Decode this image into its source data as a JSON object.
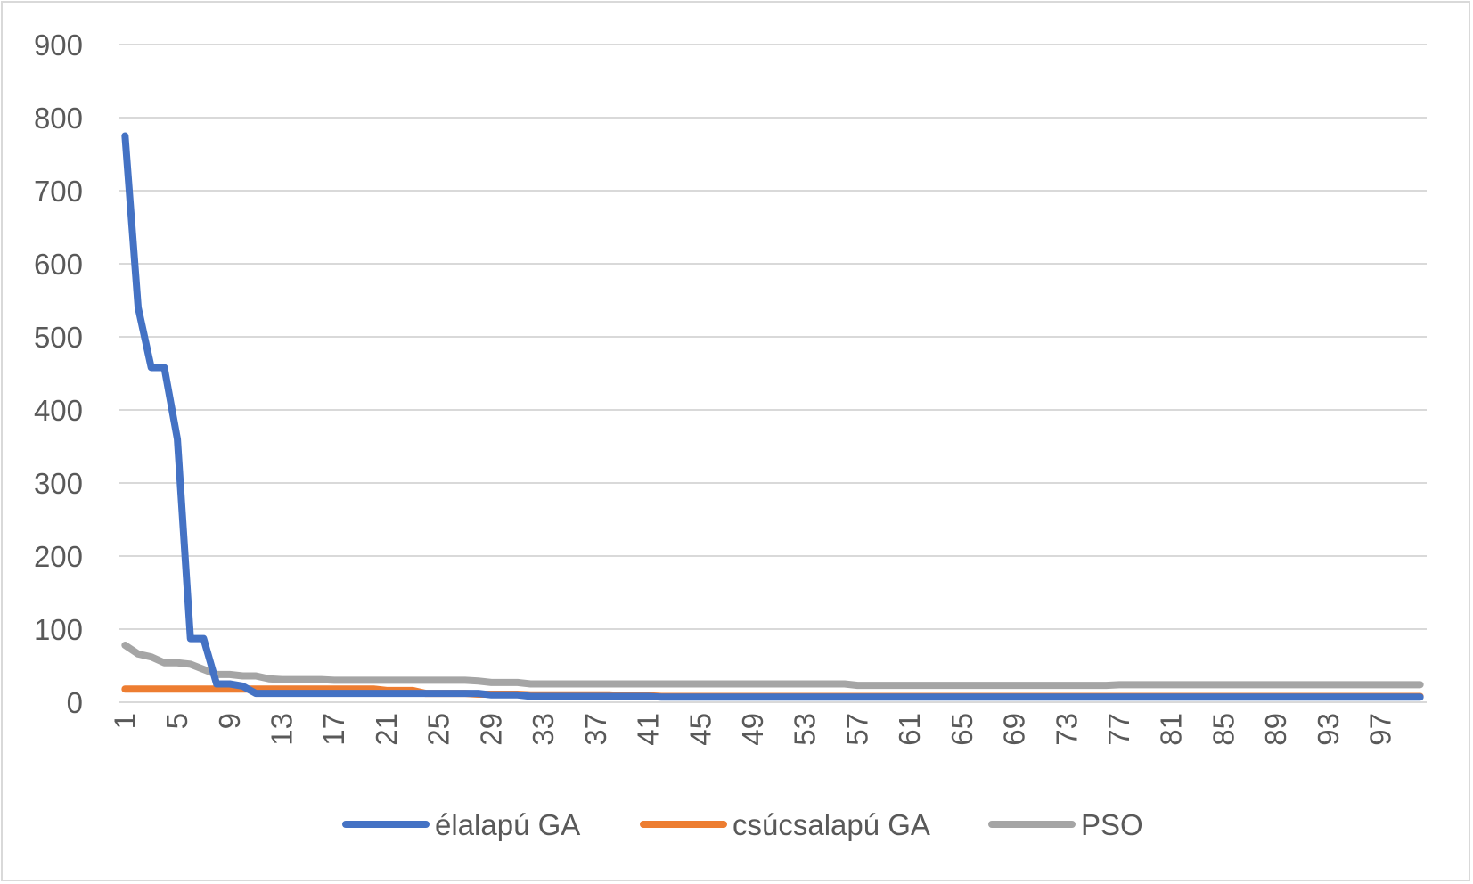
{
  "chart_data": {
    "type": "line",
    "title": "",
    "xlabel": "",
    "ylabel": "",
    "ylim": [
      0,
      900
    ],
    "yticks": [
      0,
      100,
      200,
      300,
      400,
      500,
      600,
      700,
      800,
      900
    ],
    "x": [
      1,
      2,
      3,
      4,
      5,
      6,
      7,
      8,
      9,
      10,
      11,
      12,
      13,
      14,
      15,
      16,
      17,
      18,
      19,
      20,
      21,
      22,
      23,
      24,
      25,
      26,
      27,
      28,
      29,
      30,
      31,
      32,
      33,
      34,
      35,
      36,
      37,
      38,
      39,
      40,
      41,
      42,
      43,
      44,
      45,
      46,
      47,
      48,
      49,
      50,
      51,
      52,
      53,
      54,
      55,
      56,
      57,
      58,
      59,
      60,
      61,
      62,
      63,
      64,
      65,
      66,
      67,
      68,
      69,
      70,
      71,
      72,
      73,
      74,
      75,
      76,
      77,
      78,
      79,
      80,
      81,
      82,
      83,
      84,
      85,
      86,
      87,
      88,
      89,
      90,
      91,
      92,
      93,
      94,
      95,
      96,
      97,
      98,
      99,
      100
    ],
    "xtick_labels": [
      "1",
      "5",
      "9",
      "13",
      "17",
      "21",
      "25",
      "29",
      "33",
      "37",
      "41",
      "45",
      "49",
      "53",
      "57",
      "61",
      "65",
      "69",
      "73",
      "77",
      "81",
      "85",
      "89",
      "93",
      "97"
    ],
    "grid": true,
    "legend_position": "bottom",
    "series": [
      {
        "name": "élalapú GA",
        "color": "#4472c4",
        "values": [
          775,
          540,
          458,
          458,
          360,
          87,
          87,
          25,
          25,
          22,
          12,
          12,
          12,
          12,
          12,
          12,
          12,
          12,
          12,
          12,
          12,
          12,
          12,
          12,
          12,
          12,
          12,
          12,
          10,
          10,
          10,
          8,
          8,
          8,
          8,
          8,
          8,
          8,
          8,
          8,
          8,
          7,
          7,
          7,
          7,
          7,
          7,
          7,
          7,
          7,
          7,
          7,
          7,
          7,
          7,
          7,
          7,
          7,
          7,
          7,
          7,
          7,
          7,
          7,
          7,
          7,
          7,
          7,
          7,
          7,
          7,
          7,
          7,
          7,
          7,
          7,
          7,
          7,
          7,
          7,
          7,
          7,
          7,
          7,
          7,
          7,
          7,
          7,
          7,
          7,
          7,
          7,
          7,
          7,
          7,
          7,
          7,
          7,
          7,
          7
        ]
      },
      {
        "name": "csúcsalapú GA",
        "color": "#ed7d31",
        "values": [
          18,
          18,
          18,
          18,
          18,
          18,
          18,
          18,
          18,
          18,
          18,
          18,
          18,
          18,
          18,
          18,
          18,
          18,
          18,
          18,
          16,
          16,
          16,
          12,
          12,
          12,
          12,
          11,
          11,
          11,
          11,
          10,
          10,
          10,
          10,
          10,
          10,
          10,
          9,
          9,
          9,
          8,
          8,
          8,
          8,
          8,
          8,
          8,
          8,
          8,
          8,
          8,
          8,
          8,
          8,
          8,
          8,
          8,
          8,
          8,
          8,
          8,
          8,
          8,
          8,
          8,
          8,
          8,
          8,
          8,
          8,
          8,
          8,
          8,
          8,
          8,
          8,
          8,
          8,
          8,
          8,
          8,
          8,
          8,
          8,
          8,
          8,
          8,
          8,
          8,
          8,
          8,
          8,
          8,
          8,
          8,
          8,
          8,
          8,
          8
        ]
      },
      {
        "name": "PSO",
        "color": "#a5a5a5",
        "values": [
          78,
          66,
          62,
          54,
          54,
          52,
          45,
          38,
          38,
          36,
          36,
          32,
          31,
          31,
          31,
          31,
          30,
          30,
          30,
          30,
          30,
          30,
          30,
          30,
          30,
          30,
          30,
          29,
          27,
          27,
          27,
          25,
          25,
          25,
          25,
          25,
          25,
          25,
          25,
          25,
          25,
          25,
          25,
          25,
          25,
          25,
          25,
          25,
          25,
          25,
          25,
          25,
          25,
          25,
          25,
          25,
          23,
          23,
          23,
          23,
          23,
          23,
          23,
          23,
          23,
          23,
          23,
          23,
          23,
          23,
          23,
          23,
          23,
          23,
          23,
          23,
          24,
          24,
          24,
          24,
          24,
          24,
          24,
          24,
          24,
          24,
          24,
          24,
          24,
          24,
          24,
          24,
          24,
          24,
          24,
          24,
          24,
          24,
          24,
          24
        ]
      }
    ]
  }
}
